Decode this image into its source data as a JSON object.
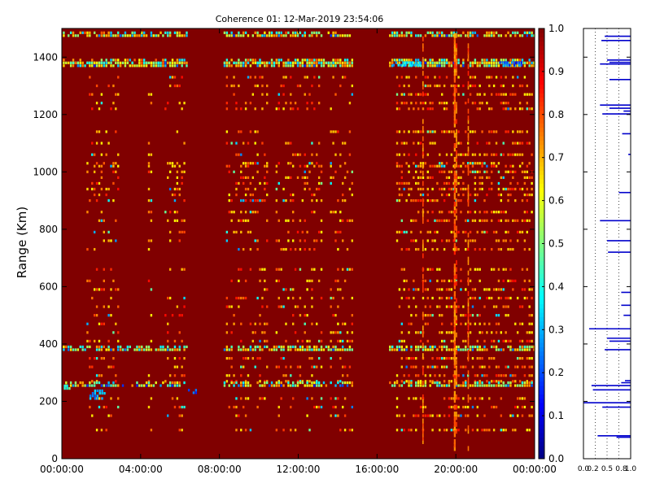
{
  "chart_data": [
    {
      "type": "heatmap",
      "title": "Coherence 01: 12-Mar-2019 23:54:06",
      "xlabel": "",
      "ylabel": "Range (Km)",
      "x_ticks": [
        "00:00:00",
        "04:00:00",
        "08:00:00",
        "12:00:00",
        "16:00:00",
        "20:00:00",
        "00:00:00"
      ],
      "xlim_hours": [
        0,
        24
      ],
      "y_ticks": [
        0,
        200,
        400,
        600,
        800,
        1000,
        1200,
        1400
      ],
      "ylim": [
        0,
        1500
      ],
      "background_value": 1.0,
      "colormap": "jet",
      "bright_bands_km": [
        1475,
        1380,
        1370,
        380,
        255
      ],
      "gate_rows_km": [
        1475,
        1380,
        1370,
        1330,
        1300,
        1270,
        1240,
        1220,
        1140,
        1100,
        1060,
        1030,
        1020,
        1000,
        980,
        960,
        940,
        920,
        900,
        860,
        830,
        790,
        760,
        730,
        660,
        620,
        590,
        560,
        530,
        500,
        470,
        440,
        410,
        380,
        350,
        320,
        290,
        270,
        255,
        210,
        180,
        150,
        100
      ],
      "active_time_blocks_hours": [
        [
          1.2,
          2.9
        ],
        [
          4.3,
          4.5
        ],
        [
          5.1,
          6.2
        ],
        [
          8.3,
          10.4
        ],
        [
          10.8,
          13.2
        ],
        [
          13.5,
          14.7
        ],
        [
          16.9,
          23.9
        ]
      ],
      "continuous_band_blocks_hours": [
        [
          0,
          6.3
        ],
        [
          8.1,
          14.8
        ],
        [
          16.6,
          24
        ]
      ],
      "vertical_streaks_hours": [
        18.3,
        19.9,
        20.0,
        20.6
      ],
      "low_coherence_patches": [
        {
          "t": [
            0.1,
            0.4
          ],
          "km": [
            245,
            255
          ],
          "value": 0.35
        },
        {
          "t": [
            1.4,
            2.2
          ],
          "km": [
            210,
            245
          ],
          "value": 0.2
        },
        {
          "t": [
            6.4,
            6.9
          ],
          "km": [
            230,
            240
          ],
          "value": 0.15
        },
        {
          "t": [
            16.8,
            18.2
          ],
          "km": [
            1372,
            1385
          ],
          "value": 0.25
        },
        {
          "t": [
            22.2,
            23.3
          ],
          "km": [
            1372,
            1385
          ],
          "value": 0.15
        }
      ]
    },
    {
      "type": "colorbar",
      "ticks": [
        0.0,
        0.1,
        0.2,
        0.3,
        0.4,
        0.5,
        0.6,
        0.7,
        0.8,
        0.9,
        1.0
      ],
      "range": [
        0,
        1
      ]
    },
    {
      "type": "bar",
      "orientation": "horizontal",
      "x_ticks": [
        "0.0",
        "0.2",
        "0.5",
        "0.8",
        "1.0"
      ],
      "xlim": [
        0,
        1
      ],
      "ylim": [
        0,
        1500
      ],
      "y_gridlines": [
        0.25,
        0.5,
        0.75
      ],
      "bars": [
        {
          "km": 1473,
          "from": 0.45,
          "to": 1.0
        },
        {
          "km": 1458,
          "from": 0.38,
          "to": 1.0
        },
        {
          "km": 1390,
          "from": 0.5,
          "to": 1.0
        },
        {
          "km": 1382,
          "from": 0.55,
          "to": 1.0
        },
        {
          "km": 1376,
          "from": 0.35,
          "to": 1.0
        },
        {
          "km": 1322,
          "from": 0.55,
          "to": 1.0
        },
        {
          "km": 1233,
          "from": 0.35,
          "to": 1.0
        },
        {
          "km": 1222,
          "from": 0.55,
          "to": 1.0
        },
        {
          "km": 1212,
          "from": 0.85,
          "to": 1.0
        },
        {
          "km": 1202,
          "from": 0.4,
          "to": 1.0
        },
        {
          "km": 1133,
          "from": 0.82,
          "to": 1.0
        },
        {
          "km": 1061,
          "from": 0.95,
          "to": 1.0
        },
        {
          "km": 928,
          "from": 0.75,
          "to": 1.0
        },
        {
          "km": 830,
          "from": 0.35,
          "to": 1.0
        },
        {
          "km": 760,
          "from": 0.5,
          "to": 1.0
        },
        {
          "km": 720,
          "from": 0.52,
          "to": 1.0
        },
        {
          "km": 580,
          "from": 0.8,
          "to": 1.0
        },
        {
          "km": 535,
          "from": 0.8,
          "to": 1.0
        },
        {
          "km": 500,
          "from": 0.85,
          "to": 1.0
        },
        {
          "km": 453,
          "from": 0.12,
          "to": 1.0
        },
        {
          "km": 420,
          "from": 0.5,
          "to": 1.0
        },
        {
          "km": 410,
          "from": 0.55,
          "to": 1.0
        },
        {
          "km": 380,
          "from": 0.45,
          "to": 1.0
        },
        {
          "km": 272,
          "from": 0.88,
          "to": 1.0
        },
        {
          "km": 265,
          "from": 0.8,
          "to": 1.0
        },
        {
          "km": 255,
          "from": 0.17,
          "to": 1.0
        },
        {
          "km": 240,
          "from": 0.2,
          "to": 1.0
        },
        {
          "km": 195,
          "from": 0.0,
          "to": 1.0
        },
        {
          "km": 180,
          "from": 0.4,
          "to": 1.0
        },
        {
          "km": 80,
          "from": 0.3,
          "to": 1.0
        },
        {
          "km": 75,
          "from": 0.7,
          "to": 1.0
        }
      ]
    }
  ]
}
